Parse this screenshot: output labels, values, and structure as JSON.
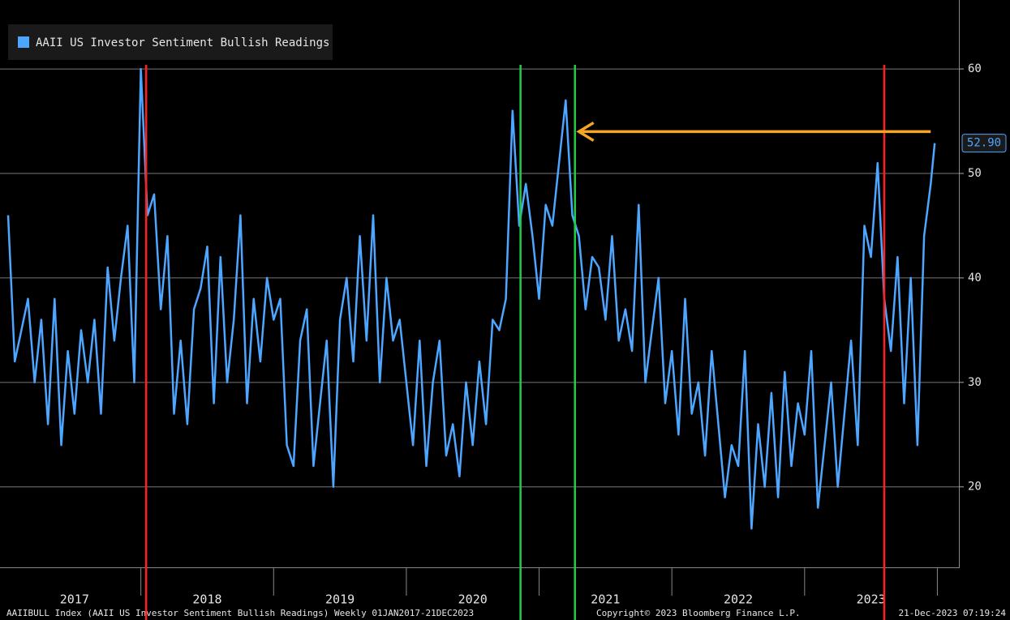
{
  "chart_data": {
    "type": "line",
    "legend": "AAII US Investor Sentiment Bullish Readings",
    "footer_left": "AAIIBULL Index (AAII US Investor Sentiment Bullish Readings) Weekly 01JAN2017-21DEC2023",
    "footer_mid": "Copyright© 2023 Bloomberg Finance L.P.",
    "footer_right": "21-Dec-2023 07:19:24",
    "last_label": "52.90",
    "xlim": [
      2017,
      2024.15
    ],
    "ylim": [
      12.3,
      66.6
    ],
    "yticks": [
      20,
      30,
      40,
      50,
      60
    ],
    "grid": true,
    "xticks": [
      {
        "value": 2017.5,
        "label": "2017"
      },
      {
        "value": 2018.5,
        "label": "2018"
      },
      {
        "value": 2019.5,
        "label": "2019"
      },
      {
        "value": 2020.5,
        "label": "2020"
      },
      {
        "value": 2021.5,
        "label": "2021"
      },
      {
        "value": 2022.5,
        "label": "2022"
      },
      {
        "value": 2023.5,
        "label": "2023"
      }
    ],
    "xminor": [
      2018,
      2019,
      2020,
      2021,
      2022,
      2023,
      2024
    ],
    "vlines": [
      {
        "x": 2018.04,
        "color": "#ff2020"
      },
      {
        "x": 2020.86,
        "color": "#22cc44"
      },
      {
        "x": 2021.27,
        "color": "#22cc44"
      },
      {
        "x": 2023.6,
        "color": "#ff2020"
      }
    ],
    "arrow": {
      "x1": 2023.95,
      "x2": 2021.3,
      "y": 54,
      "color": "#f5a623"
    },
    "series": [
      {
        "name": "AAII US Investor Sentiment Bullish Readings",
        "color": "#4da6ff",
        "x": [
          2017,
          2017.05,
          2017.1,
          2017.15,
          2017.2,
          2017.25,
          2017.3,
          2017.35,
          2017.4,
          2017.45,
          2017.5,
          2017.55,
          2017.6,
          2017.65,
          2017.7,
          2017.75,
          2017.8,
          2017.85,
          2017.9,
          2017.95,
          2018,
          2018.05,
          2018.1,
          2018.15,
          2018.2,
          2018.25,
          2018.3,
          2018.35,
          2018.4,
          2018.45,
          2018.5,
          2018.55,
          2018.6,
          2018.65,
          2018.7,
          2018.75,
          2018.8,
          2018.85,
          2018.9,
          2018.95,
          2019,
          2019.05,
          2019.1,
          2019.15,
          2019.2,
          2019.25,
          2019.3,
          2019.35,
          2019.4,
          2019.45,
          2019.5,
          2019.55,
          2019.6,
          2019.65,
          2019.7,
          2019.75,
          2019.8,
          2019.85,
          2019.9,
          2019.95,
          2020,
          2020.05,
          2020.1,
          2020.15,
          2020.2,
          2020.25,
          2020.3,
          2020.35,
          2020.4,
          2020.45,
          2020.5,
          2020.55,
          2020.6,
          2020.65,
          2020.7,
          2020.75,
          2020.8,
          2020.85,
          2020.9,
          2020.95,
          2021,
          2021.05,
          2021.1,
          2021.15,
          2021.2,
          2021.25,
          2021.3,
          2021.35,
          2021.4,
          2021.45,
          2021.5,
          2021.55,
          2021.6,
          2021.65,
          2021.7,
          2021.75,
          2021.8,
          2021.85,
          2021.9,
          2021.95,
          2022,
          2022.05,
          2022.1,
          2022.15,
          2022.2,
          2022.25,
          2022.3,
          2022.35,
          2022.4,
          2022.45,
          2022.5,
          2022.55,
          2022.6,
          2022.65,
          2022.7,
          2022.75,
          2022.8,
          2022.85,
          2022.9,
          2022.95,
          2023,
          2023.05,
          2023.1,
          2023.15,
          2023.2,
          2023.25,
          2023.3,
          2023.35,
          2023.4,
          2023.45,
          2023.5,
          2023.55,
          2023.6,
          2023.65,
          2023.7,
          2023.75,
          2023.8,
          2023.85,
          2023.9,
          2023.95,
          2023.98
        ],
        "values": [
          46,
          32,
          35,
          38,
          30,
          36,
          26,
          38,
          24,
          33,
          27,
          35,
          30,
          36,
          27,
          41,
          34,
          40,
          45,
          30,
          60,
          46,
          48,
          37,
          44,
          27,
          34,
          26,
          37,
          39,
          43,
          28,
          42,
          30,
          36,
          46,
          28,
          38,
          32,
          40,
          36,
          38,
          24,
          22,
          34,
          37,
          22,
          28,
          34,
          20,
          36,
          40,
          32,
          44,
          34,
          46,
          30,
          40,
          34,
          36,
          30,
          24,
          34,
          22,
          30,
          34,
          23,
          26,
          21,
          30,
          24,
          32,
          26,
          36,
          35,
          38,
          56,
          45,
          49,
          44,
          38,
          47,
          45,
          51,
          57,
          46,
          44,
          37,
          42,
          41,
          36,
          44,
          34,
          37,
          33,
          47,
          30,
          35,
          40,
          28,
          33,
          25,
          38,
          27,
          30,
          23,
          33,
          26,
          19,
          24,
          22,
          33,
          16,
          26,
          20,
          29,
          19,
          31,
          22,
          28,
          25,
          33,
          18,
          24,
          30,
          20,
          27,
          34,
          24,
          45,
          42,
          51,
          38,
          33,
          42,
          28,
          40,
          24,
          44,
          49,
          52.9
        ]
      }
    ]
  }
}
